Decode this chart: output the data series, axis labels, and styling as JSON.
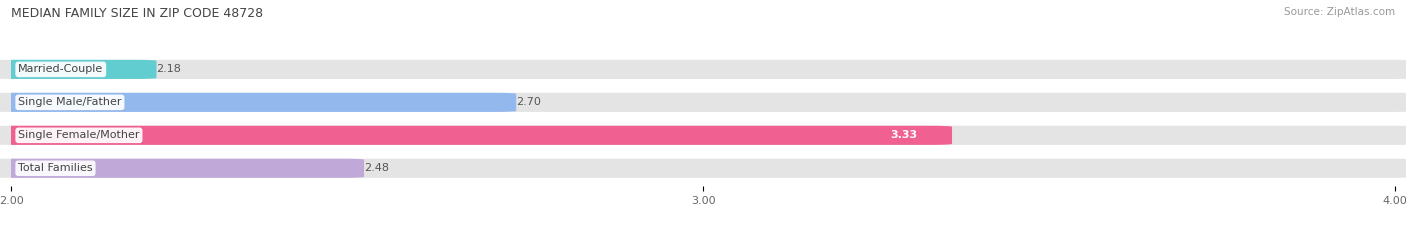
{
  "title": "MEDIAN FAMILY SIZE IN ZIP CODE 48728",
  "source": "Source: ZipAtlas.com",
  "categories": [
    "Married-Couple",
    "Single Male/Father",
    "Single Female/Mother",
    "Total Families"
  ],
  "values": [
    2.18,
    2.7,
    3.33,
    2.48
  ],
  "bar_colors": [
    "#62CDD0",
    "#93B8EE",
    "#F06090",
    "#C0A8D8"
  ],
  "xlim": [
    0.0,
    2.0
  ],
  "data_min": 2.0,
  "data_max": 4.0,
  "xticks": [
    0.0,
    1.0,
    2.0
  ],
  "xtick_labels": [
    "2.00",
    "3.00",
    "4.00"
  ],
  "background_color": "#FFFFFF",
  "bar_bg_color": "#E4E4E4",
  "grid_color": "#FFFFFF",
  "title_fontsize": 9,
  "source_fontsize": 7.5,
  "label_fontsize": 8,
  "value_fontsize": 8
}
